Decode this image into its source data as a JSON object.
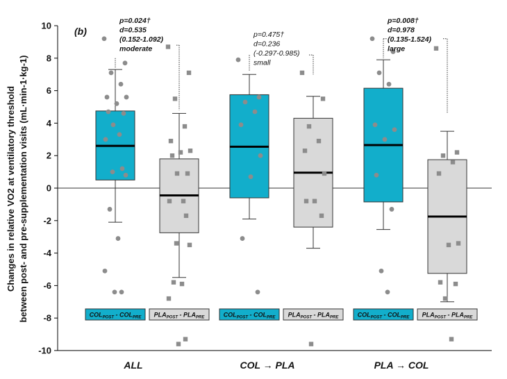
{
  "chart_data": {
    "type": "box",
    "panel_label": "(b)",
    "ylabel_line1": "Changes in relative VO2 at ventilatory threshold",
    "ylabel_line2": "between post- and pre-supplementation visits (mL·min-1·kg-1)",
    "ylim": [
      -10,
      10
    ],
    "yticks": [
      -10,
      -8,
      -6,
      -4,
      -2,
      0,
      2,
      4,
      6,
      8,
      10
    ],
    "groups": [
      {
        "label_a": "ALL",
        "label_arrow": "",
        "label_b": "",
        "boxes": [
          {
            "series": "COL",
            "legend_main": "COL",
            "legend_sub1": "POST",
            "legend_mid": " - COL",
            "legend_sub2": "PRE",
            "q1": 0.5,
            "median": 2.6,
            "q3": 4.75,
            "whisker_low": -2.1,
            "whisker_high": 7.3,
            "points": [
              9.2,
              7.7,
              7.1,
              6.4,
              5.6,
              5.6,
              5.2,
              4.7,
              4.6,
              3.9,
              3.3,
              3.0,
              1.2,
              1.0,
              0.8,
              -1.3,
              -3.1,
              -5.1,
              -6.4,
              -6.4
            ]
          },
          {
            "series": "PLA",
            "legend_main": "PLA",
            "legend_sub1": "POST",
            "legend_mid": " - PLA",
            "legend_sub2": "PRE",
            "q1": -2.75,
            "median": -0.45,
            "q3": 1.8,
            "whisker_low": -5.5,
            "whisker_high": 4.6,
            "points": [
              8.7,
              7.1,
              5.5,
              3.8,
              2.9,
              2.3,
              2.2,
              2.0,
              0.9,
              0.9,
              -0.8,
              -0.8,
              -1.7,
              -3.4,
              -3.5,
              -5.8,
              -5.9,
              -6.8,
              -9.3,
              -9.6
            ]
          }
        ],
        "annotation": {
          "lines": [
            "p=0.024†",
            "d=0.535",
            "(0.152-1.092)",
            "moderate"
          ],
          "bold": true
        }
      },
      {
        "label_a": "COL",
        "label_arrow": "→",
        "label_b": "PLA",
        "boxes": [
          {
            "series": "COL",
            "legend_main": "COL",
            "legend_sub1": "POST",
            "legend_mid": " - COL",
            "legend_sub2": "PRE",
            "q1": -0.6,
            "median": 2.55,
            "q3": 5.75,
            "whisker_low": -1.9,
            "whisker_high": 7.0,
            "points": [
              7.9,
              5.6,
              5.3,
              4.7,
              3.9,
              2.0,
              0.7,
              -3.1,
              -6.4
            ]
          },
          {
            "series": "PLA",
            "legend_main": "PLA",
            "legend_sub1": "POST",
            "legend_mid": " - PLA",
            "legend_sub2": "PRE",
            "q1": -2.4,
            "median": 0.95,
            "q3": 4.3,
            "whisker_low": -3.7,
            "whisker_high": 5.65,
            "points": [
              7.1,
              5.5,
              3.8,
              2.9,
              2.3,
              0.9,
              -0.8,
              -0.8,
              -1.7,
              -9.6
            ]
          }
        ],
        "annotation": {
          "lines": [
            "p=0.475†",
            "d=0.236",
            "(-0.297-0.985)",
            "small"
          ],
          "bold": false
        }
      },
      {
        "label_a": "PLA",
        "label_arrow": "→",
        "label_b": "COL",
        "boxes": [
          {
            "series": "COL",
            "legend_main": "COL",
            "legend_sub1": "POST",
            "legend_mid": " - COL",
            "legend_sub2": "PRE",
            "q1": -0.85,
            "median": 2.65,
            "q3": 6.15,
            "whisker_low": -2.55,
            "whisker_high": 7.9,
            "points": [
              9.2,
              8.4,
              7.1,
              6.4,
              3.9,
              3.6,
              3.0,
              0.8,
              -1.3,
              -5.1,
              -6.4
            ]
          },
          {
            "series": "PLA",
            "legend_main": "PLA",
            "legend_sub1": "POST",
            "legend_mid": " - PLA",
            "legend_sub2": "PRE",
            "q1": -5.25,
            "median": -1.75,
            "q3": 1.75,
            "whisker_low": -7.0,
            "whisker_high": 3.5,
            "points": [
              8.6,
              2.2,
              2.0,
              1.6,
              0.9,
              -3.4,
              -3.5,
              -5.8,
              -5.9,
              -6.8,
              -9.3
            ]
          }
        ],
        "annotation": {
          "lines": [
            "p=0.008†",
            "d=0.978",
            "(0.135-1.524)",
            "large"
          ],
          "bold": true
        }
      }
    ],
    "colors": {
      "COL": "#12aecb",
      "PLA": "#d9d9d9",
      "point": "#8c8c8c",
      "outline": "#333333"
    }
  }
}
